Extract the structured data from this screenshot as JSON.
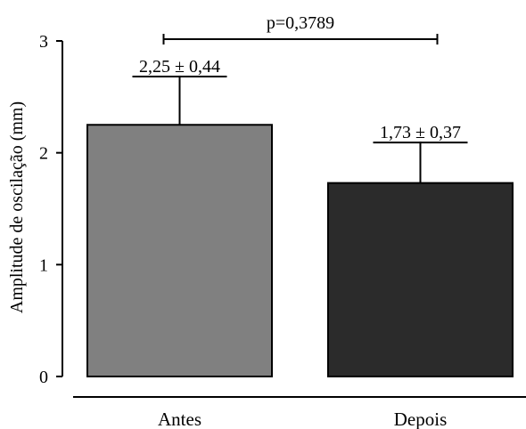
{
  "chart_data": {
    "type": "bar",
    "title": "",
    "xlabel": "",
    "ylabel": "Amplitude de oscilação (mm)",
    "ylim": [
      0,
      3
    ],
    "yticks": [
      0,
      1,
      2,
      3
    ],
    "ytick_labels": [
      "0",
      "1",
      "2",
      "3"
    ],
    "categories": [
      "Antes",
      "Depois"
    ],
    "values": [
      2.25,
      1.73
    ],
    "errors": [
      0.44,
      0.37
    ],
    "bar_labels": [
      "2,25 ± 0,44",
      "1,73 ± 0,37"
    ],
    "colors": [
      "#808080",
      "#2b2b2b"
    ],
    "significance": {
      "label": "p=0,3789",
      "between": [
        0,
        1
      ]
    },
    "grid": false,
    "legend": "none"
  }
}
